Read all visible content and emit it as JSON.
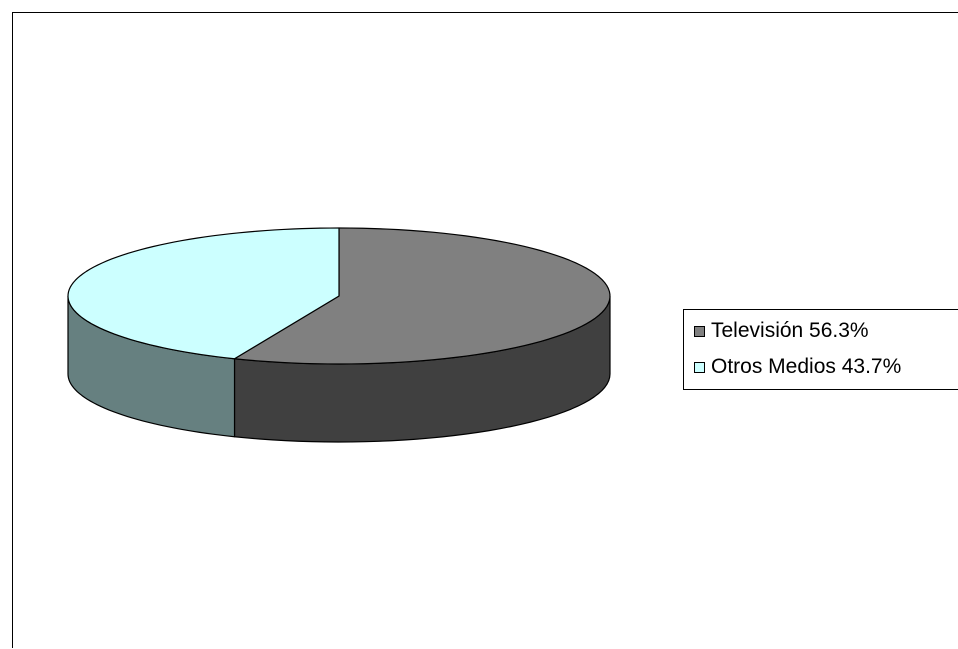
{
  "chart_data": {
    "type": "pie",
    "style": "3d",
    "categories": [
      "Televisión",
      "Otros Medios"
    ],
    "values": [
      56.3,
      43.7
    ],
    "unit": "%",
    "legend_position": "right",
    "slices": [
      {
        "label": "Televisión 56.3%",
        "value": 56.3,
        "top_color": "#808080",
        "side_color": "#404040"
      },
      {
        "label": "Otros Medios 43.7%",
        "value": 43.7,
        "top_color": "#ccffff",
        "side_color": "#668080"
      }
    ]
  }
}
